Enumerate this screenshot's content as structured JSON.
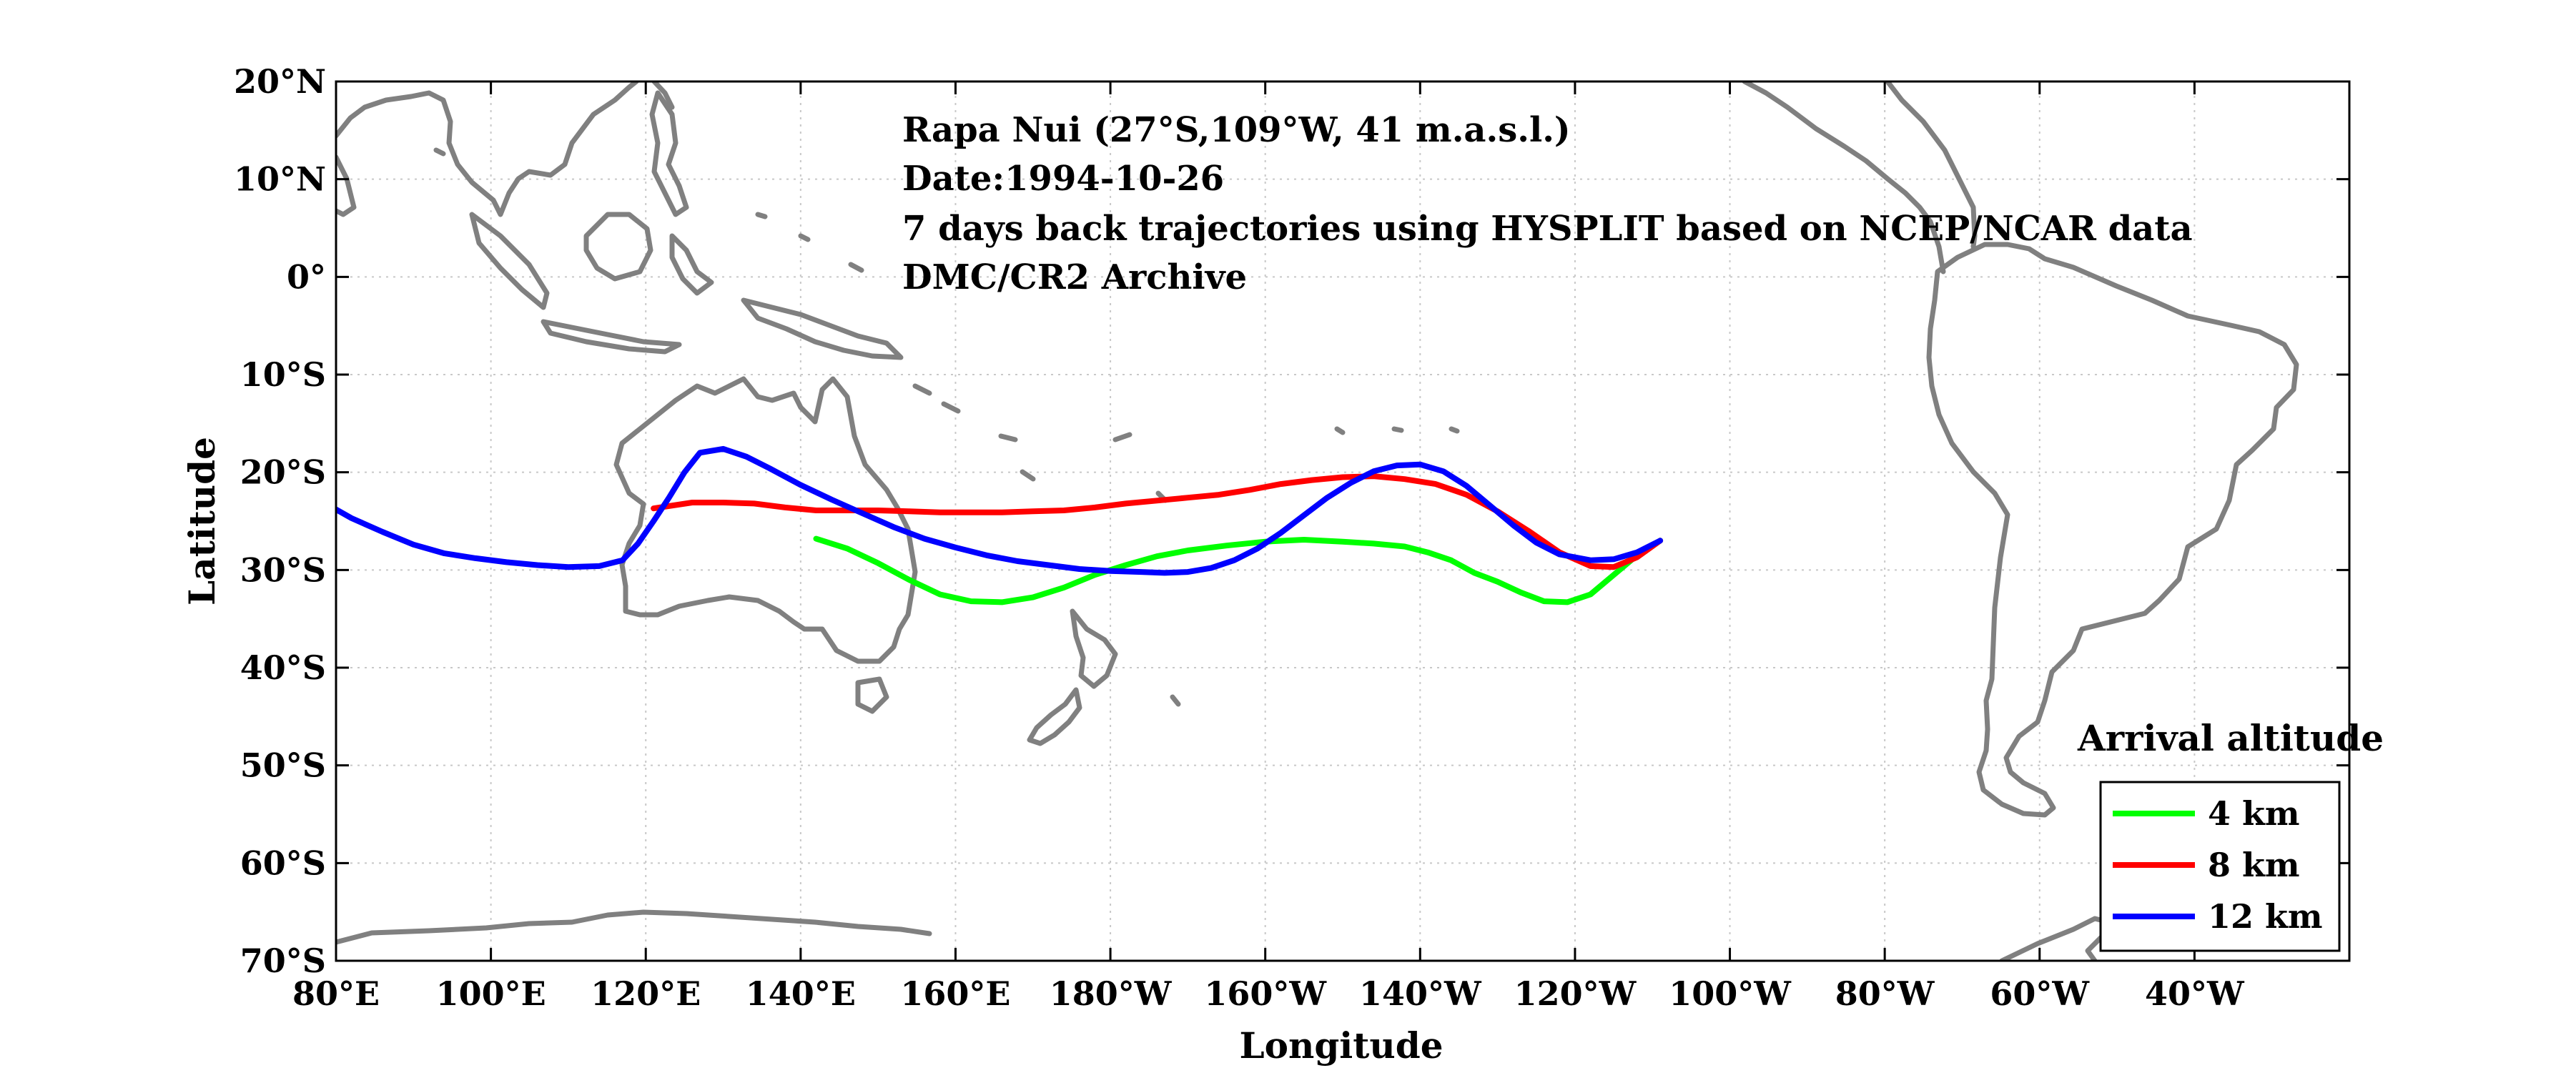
{
  "figure": {
    "info_lines": [
      "Rapa Nui (27°S,109°W, 41 m.a.s.l.)",
      "Date:1994-10-26",
      "7 days back trajectories using HYSPLIT based on NCEP/NCAR data",
      "DMC/CR2 Archive"
    ],
    "xlabel": "Longitude",
    "ylabel": "Latitude",
    "legend_title": "Arrival altitude",
    "legend_placement": "bottom-right"
  },
  "chart_data": {
    "type": "line",
    "map_projection": "equirectangular",
    "x_range_lon_east": [
      80,
      340
    ],
    "y_range_lat": [
      -70,
      20
    ],
    "grid": true,
    "x_tick_labels": [
      "80°E",
      "100°E",
      "120°E",
      "140°E",
      "160°E",
      "180°W",
      "160°W",
      "140°W",
      "120°W",
      "100°W",
      "80°W",
      "60°W",
      "40°W"
    ],
    "x_tick_values": [
      80,
      100,
      120,
      140,
      160,
      180,
      200,
      220,
      240,
      260,
      280,
      300,
      320
    ],
    "y_tick_labels": [
      "20°N",
      "10°N",
      "0°",
      "10°S",
      "20°S",
      "30°S",
      "40°S",
      "50°S",
      "60°S",
      "70°S"
    ],
    "y_tick_values": [
      20,
      10,
      0,
      -10,
      -20,
      -30,
      -40,
      -50,
      -60,
      -70
    ],
    "colors": {
      "coastline": "#808080",
      "grid": "#c8c8c8",
      "axes": "#000000"
    },
    "series": [
      {
        "name": "4 km",
        "color": "#00ff00",
        "points": [
          [
            251,
            -27
          ],
          [
            248,
            -28.5
          ],
          [
            245,
            -30.5
          ],
          [
            242,
            -32.5
          ],
          [
            239,
            -33.3
          ],
          [
            236,
            -33.2
          ],
          [
            233,
            -32.3
          ],
          [
            230,
            -31.2
          ],
          [
            227,
            -30.3
          ],
          [
            224,
            -29
          ],
          [
            221,
            -28.2
          ],
          [
            218,
            -27.6
          ],
          [
            214,
            -27.3
          ],
          [
            210,
            -27.1
          ],
          [
            205,
            -26.9
          ],
          [
            200,
            -27.1
          ],
          [
            195,
            -27.5
          ],
          [
            190,
            -28
          ],
          [
            186,
            -28.6
          ],
          [
            182,
            -29.5
          ],
          [
            178,
            -30.5
          ],
          [
            174,
            -31.8
          ],
          [
            170,
            -32.8
          ],
          [
            166,
            -33.3
          ],
          [
            162,
            -33.2
          ],
          [
            158,
            -32.5
          ],
          [
            154,
            -31
          ],
          [
            150,
            -29.3
          ],
          [
            146,
            -27.8
          ],
          [
            142,
            -26.8
          ]
        ]
      },
      {
        "name": "8 km",
        "color": "#ff0000",
        "points": [
          [
            251,
            -27
          ],
          [
            248,
            -28.7
          ],
          [
            245,
            -29.7
          ],
          [
            242,
            -29.6
          ],
          [
            238,
            -28.2
          ],
          [
            234,
            -26
          ],
          [
            230,
            -24
          ],
          [
            226,
            -22.3
          ],
          [
            222,
            -21.2
          ],
          [
            218,
            -20.7
          ],
          [
            214,
            -20.4
          ],
          [
            210,
            -20.5
          ],
          [
            206,
            -20.8
          ],
          [
            202,
            -21.2
          ],
          [
            198,
            -21.8
          ],
          [
            194,
            -22.3
          ],
          [
            190,
            -22.6
          ],
          [
            186,
            -22.9
          ],
          [
            182,
            -23.2
          ],
          [
            178,
            -23.6
          ],
          [
            174,
            -23.9
          ],
          [
            170,
            -24
          ],
          [
            166,
            -24.1
          ],
          [
            162,
            -24.1
          ],
          [
            158,
            -24.1
          ],
          [
            154,
            -24
          ],
          [
            150,
            -23.9
          ],
          [
            146,
            -23.9
          ],
          [
            142,
            -23.9
          ],
          [
            138,
            -23.6
          ],
          [
            134,
            -23.2
          ],
          [
            130,
            -23.1
          ],
          [
            126,
            -23.1
          ],
          [
            121,
            -23.7
          ]
        ]
      },
      {
        "name": "12 km",
        "color": "#0000ff",
        "points": [
          [
            251,
            -27
          ],
          [
            248,
            -28.2
          ],
          [
            245,
            -28.9
          ],
          [
            242,
            -29
          ],
          [
            238,
            -28.4
          ],
          [
            235,
            -27.2
          ],
          [
            232,
            -25.4
          ],
          [
            229,
            -23.4
          ],
          [
            226,
            -21.4
          ],
          [
            223,
            -19.9
          ],
          [
            220,
            -19.2
          ],
          [
            217,
            -19.3
          ],
          [
            214,
            -19.9
          ],
          [
            211,
            -21.1
          ],
          [
            208,
            -22.6
          ],
          [
            205,
            -24.4
          ],
          [
            202,
            -26.2
          ],
          [
            199,
            -27.8
          ],
          [
            196,
            -29
          ],
          [
            193,
            -29.8
          ],
          [
            190,
            -30.2
          ],
          [
            187,
            -30.3
          ],
          [
            184,
            -30.2
          ],
          [
            180,
            -30.1
          ],
          [
            176,
            -29.9
          ],
          [
            172,
            -29.5
          ],
          [
            168,
            -29.1
          ],
          [
            164,
            -28.5
          ],
          [
            160,
            -27.7
          ],
          [
            156,
            -26.8
          ],
          [
            152,
            -25.6
          ],
          [
            148,
            -24.2
          ],
          [
            144,
            -22.8
          ],
          [
            140,
            -21.3
          ],
          [
            136,
            -19.6
          ],
          [
            133,
            -18.4
          ],
          [
            130,
            -17.6
          ],
          [
            127,
            -18
          ],
          [
            125,
            -20
          ],
          [
            123,
            -22.6
          ],
          [
            121,
            -25
          ],
          [
            119,
            -27.3
          ],
          [
            117,
            -29
          ],
          [
            114,
            -29.6
          ],
          [
            110,
            -29.7
          ],
          [
            106,
            -29.5
          ],
          [
            102,
            -29.2
          ],
          [
            98,
            -28.8
          ],
          [
            94,
            -28.3
          ],
          [
            90,
            -27.4
          ],
          [
            86,
            -26.1
          ],
          [
            82,
            -24.7
          ],
          [
            80,
            -23.8
          ]
        ]
      }
    ]
  }
}
